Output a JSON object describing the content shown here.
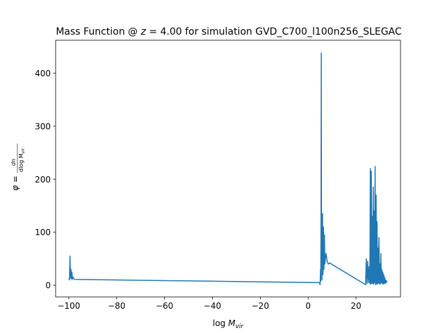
{
  "chart_data": {
    "type": "line",
    "title": "Mass Function @ z = 4.00 for simulation GVD_C700_l100n256_SLEGAC",
    "title_parts": {
      "prefix": "Mass Function @ ",
      "z_var": "z",
      "z_value": " = 4.00",
      "suffix": " for simulation GVD_C700_l100n256_SLEGAC"
    },
    "xlabel": "log M_vir",
    "xlabel_parts": {
      "log": "log ",
      "M": "M",
      "sub": "vir"
    },
    "ylabel": "φ = dn / dlog M_vir",
    "ylabel_parts": {
      "phi": "φ",
      "eq": " = ",
      "num": "dn",
      "den": "dlog M",
      "sub": "vir"
    },
    "xlim": [
      -105.5,
      38.6
    ],
    "ylim": [
      -22,
      462
    ],
    "x_ticks": [
      -100,
      -80,
      -60,
      -40,
      -20,
      0,
      20
    ],
    "x_tick_labels": [
      "−100",
      "−80",
      "−60",
      "−40",
      "−20",
      "0",
      "20"
    ],
    "y_ticks": [
      0,
      100,
      200,
      300,
      400
    ],
    "y_tick_labels": [
      "0",
      "100",
      "200",
      "300",
      "400"
    ],
    "series": [
      {
        "name": "mass_function",
        "color": "#1f77b4",
        "x": [
          -100.0,
          -99.7,
          -99.5,
          -99.3,
          -99.1,
          -98.9,
          -98.7,
          -98.5,
          -98.3,
          -98.0,
          -97.5,
          4.8,
          5.0,
          5.2,
          5.3,
          5.4,
          5.5,
          5.6,
          5.7,
          5.8,
          6.0,
          6.2,
          6.4,
          6.6,
          6.8,
          7.0,
          7.2,
          7.5,
          8.0,
          8.5,
          9.0,
          24.0,
          24.3,
          24.6,
          24.9,
          25.2,
          25.5,
          25.8,
          26.0,
          26.2,
          26.4,
          26.6,
          26.8,
          27.0,
          27.2,
          27.4,
          27.6,
          27.8,
          28.0,
          28.2,
          28.4,
          28.6,
          28.8,
          29.0,
          29.2,
          29.4,
          29.6,
          29.8,
          30.0,
          30.2,
          30.4,
          30.6,
          30.8,
          31.0,
          31.2,
          31.4,
          31.6,
          31.8,
          32.0,
          32.2,
          32.4,
          32.6,
          32.8,
          33.0
        ],
        "y": [
          13,
          10,
          55,
          14,
          30,
          12,
          25,
          11,
          16,
          13,
          11,
          5,
          1,
          30,
          8,
          120,
          438,
          60,
          90,
          10,
          135,
          20,
          110,
          30,
          95,
          40,
          50,
          60,
          44,
          40,
          42,
          1,
          50,
          3,
          45,
          5,
          35,
          3,
          220,
          2,
          215,
          4,
          130,
          3,
          185,
          2,
          140,
          5,
          224,
          1,
          170,
          3,
          120,
          2,
          70,
          4,
          90,
          3,
          40,
          2,
          60,
          5,
          30,
          3,
          25,
          2,
          20,
          4,
          15,
          3,
          10,
          5,
          8,
          6
        ]
      }
    ]
  }
}
